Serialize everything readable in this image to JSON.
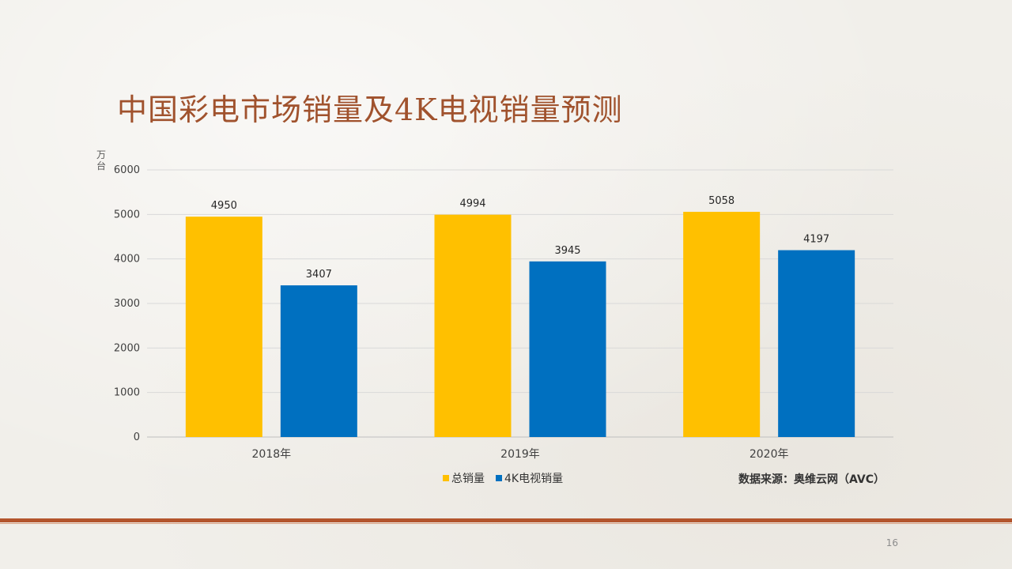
{
  "slide": {
    "title": "中国彩电市场销量及4K电视销量预测",
    "unit": "万台",
    "source": "数据来源：奥维云网（AVC）",
    "page_number": "16"
  },
  "colors": {
    "title": "#a0522d",
    "series_total": "#ffc000",
    "series_4k": "#0070c0",
    "footer_line": "#b3552d"
  },
  "chart_data": {
    "type": "bar",
    "title": "中国彩电市场销量及4K电视销量预测",
    "ylabel": "万台",
    "xlabel": "",
    "categories": [
      "2018年",
      "2019年",
      "2020年"
    ],
    "series": [
      {
        "name": "总销量",
        "values": [
          4950,
          4994,
          5058
        ],
        "color": "#ffc000"
      },
      {
        "name": "4K电视销量",
        "values": [
          3407,
          3945,
          4197
        ],
        "color": "#0070c0"
      }
    ],
    "ylim": [
      0,
      6000
    ],
    "yticks": [
      0,
      1000,
      2000,
      3000,
      4000,
      5000,
      6000
    ],
    "grid": true,
    "legend_position": "bottom",
    "data_labels": true
  }
}
